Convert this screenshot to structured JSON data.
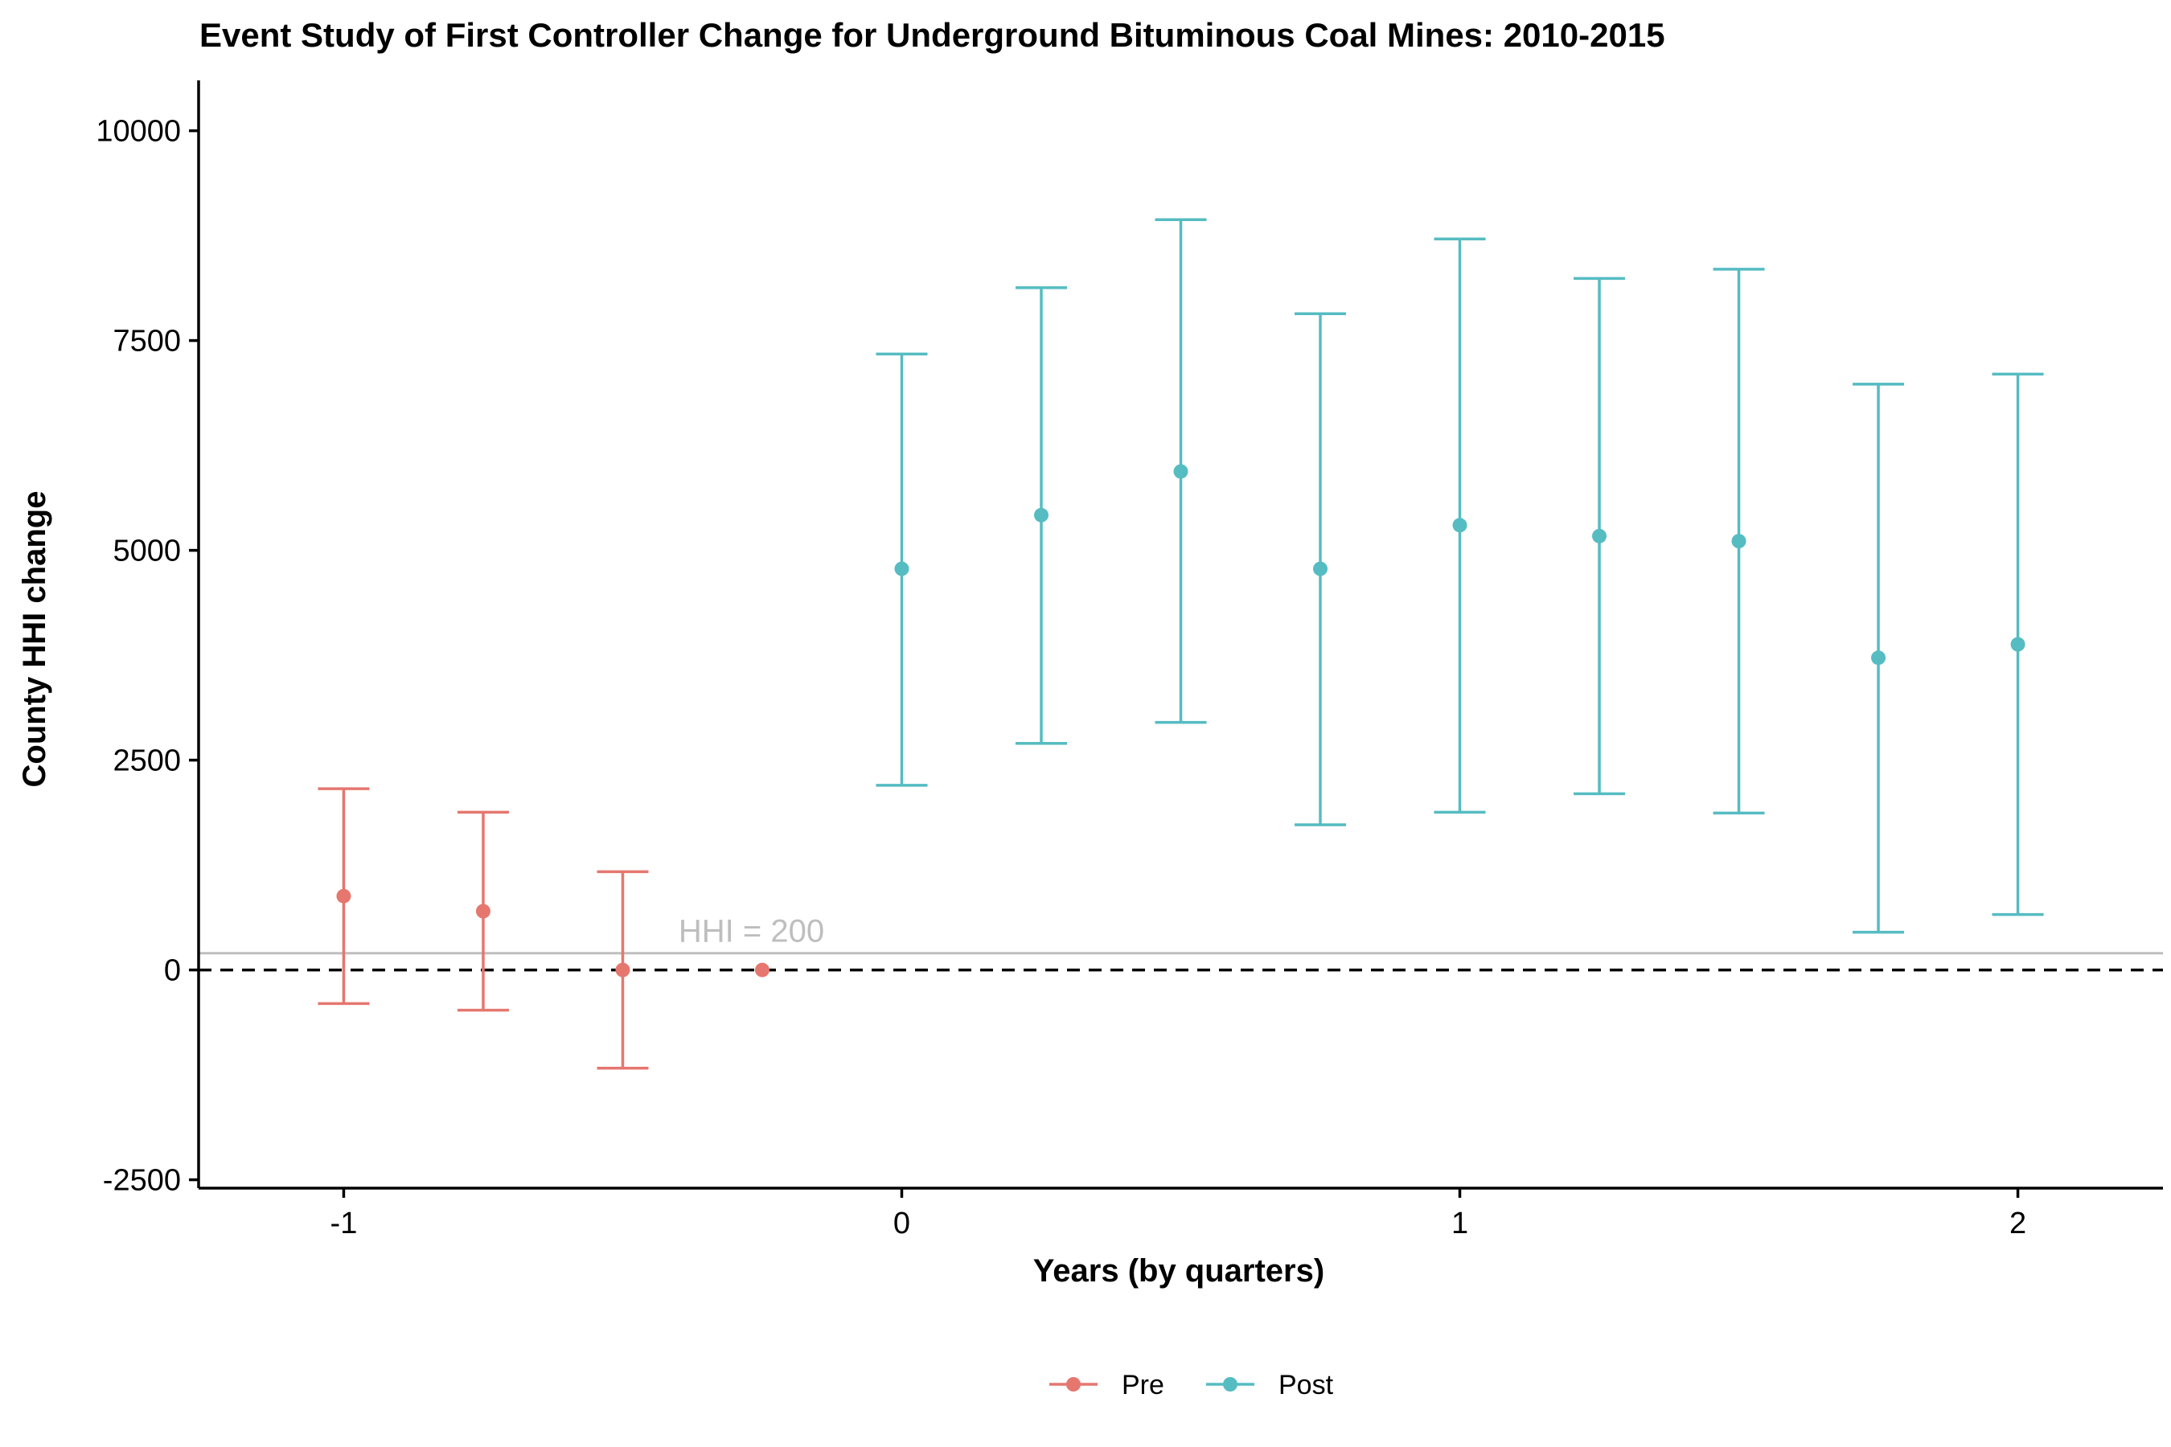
{
  "chart_data": {
    "type": "scatter",
    "title": "Event Study of First Controller Change for Underground Bituminous Coal Mines: 2010-2015",
    "xlabel": "Years (by quarters)",
    "ylabel": "County HHI change",
    "xlim": [
      -1.26,
      2.26
    ],
    "ylim": [
      -2600,
      10600
    ],
    "x_ticks": [
      -1,
      0,
      1,
      2
    ],
    "x_tick_labels": [
      "-1",
      "0",
      "1",
      "2"
    ],
    "y_ticks": [
      -2500,
      0,
      2500,
      5000,
      7500,
      10000
    ],
    "y_tick_labels": [
      "-2500",
      "0",
      "2500",
      "5000",
      "7500",
      "10000"
    ],
    "grid": false,
    "legend_position": "bottom",
    "zero_line": {
      "y": 0,
      "style": "dashed",
      "color": "#000000"
    },
    "reference_line": {
      "y": 200,
      "label": "HHI = 200",
      "color": "#bebebe"
    },
    "series": [
      {
        "name": "Pre",
        "color": "#e5776f",
        "points": [
          {
            "x": -1.0,
            "y": 880,
            "lo": -400,
            "hi": 2160
          },
          {
            "x": -0.75,
            "y": 700,
            "lo": -480,
            "hi": 1880
          },
          {
            "x": -0.5,
            "y": 0,
            "lo": -1170,
            "hi": 1170
          },
          {
            "x": -0.25,
            "y": 0
          }
        ]
      },
      {
        "name": "Post",
        "color": "#55bcc2",
        "points": [
          {
            "x": 0.0,
            "y": 4780,
            "lo": 2200,
            "hi": 7340
          },
          {
            "x": 0.25,
            "y": 5420,
            "lo": 2700,
            "hi": 8130
          },
          {
            "x": 0.5,
            "y": 5940,
            "lo": 2950,
            "hi": 8940
          },
          {
            "x": 0.75,
            "y": 4780,
            "lo": 1730,
            "hi": 7820
          },
          {
            "x": 1.0,
            "y": 5300,
            "lo": 1880,
            "hi": 8710
          },
          {
            "x": 1.25,
            "y": 5170,
            "lo": 2100,
            "hi": 8240
          },
          {
            "x": 1.5,
            "y": 5110,
            "lo": 1870,
            "hi": 8350
          },
          {
            "x": 1.75,
            "y": 3720,
            "lo": 450,
            "hi": 6980
          },
          {
            "x": 2.0,
            "y": 3880,
            "lo": 660,
            "hi": 7100
          }
        ]
      }
    ]
  }
}
